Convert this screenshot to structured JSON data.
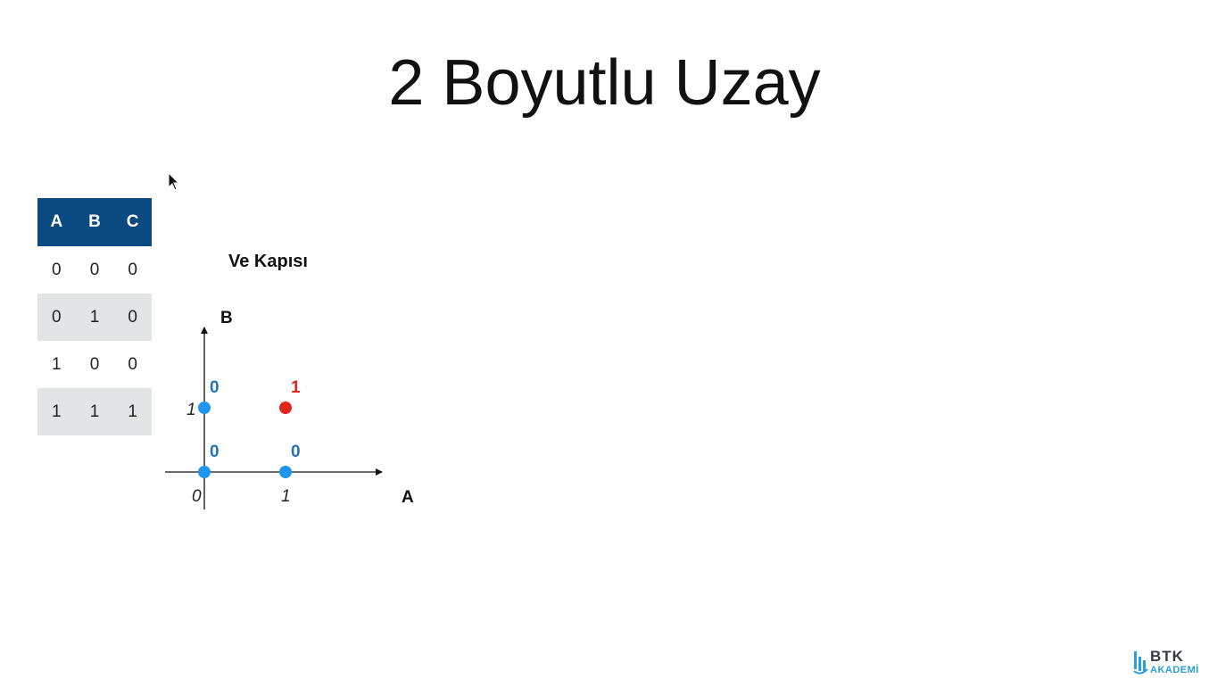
{
  "slide": {
    "title": "2 Boyutlu Uzay"
  },
  "truth_table": {
    "headers": [
      "A",
      "B",
      "C"
    ],
    "rows": [
      [
        "0",
        "0",
        "0"
      ],
      [
        "0",
        "1",
        "0"
      ],
      [
        "1",
        "0",
        "0"
      ],
      [
        "1",
        "1",
        "1"
      ]
    ],
    "header_color": "#0b4a80",
    "stripe_color": "#e3e4e6"
  },
  "chart_data": {
    "type": "scatter",
    "title": "Ve Kapısı",
    "xlabel": "A",
    "ylabel": "B",
    "xlim": [
      0,
      1
    ],
    "ylim": [
      0,
      1
    ],
    "x_ticks": [
      "0",
      "1"
    ],
    "y_ticks": [
      "1"
    ],
    "grid": false,
    "points": [
      {
        "x": 0,
        "y": 0,
        "label": "0",
        "color": "#1e96f0",
        "label_color": "#2473b8"
      },
      {
        "x": 1,
        "y": 0,
        "label": "0",
        "color": "#1e96f0",
        "label_color": "#2473b8"
      },
      {
        "x": 0,
        "y": 1,
        "label": "0",
        "color": "#1e96f0",
        "label_color": "#2473b8"
      },
      {
        "x": 1,
        "y": 1,
        "label": "1",
        "color": "#e0261f",
        "label_color": "#e0261f"
      }
    ]
  },
  "logo": {
    "line1": "BTK",
    "line2": "AKADEMİ"
  },
  "icons": {
    "cursor": "mouse-pointer-icon",
    "logo_mark": "btk-bars-icon"
  }
}
